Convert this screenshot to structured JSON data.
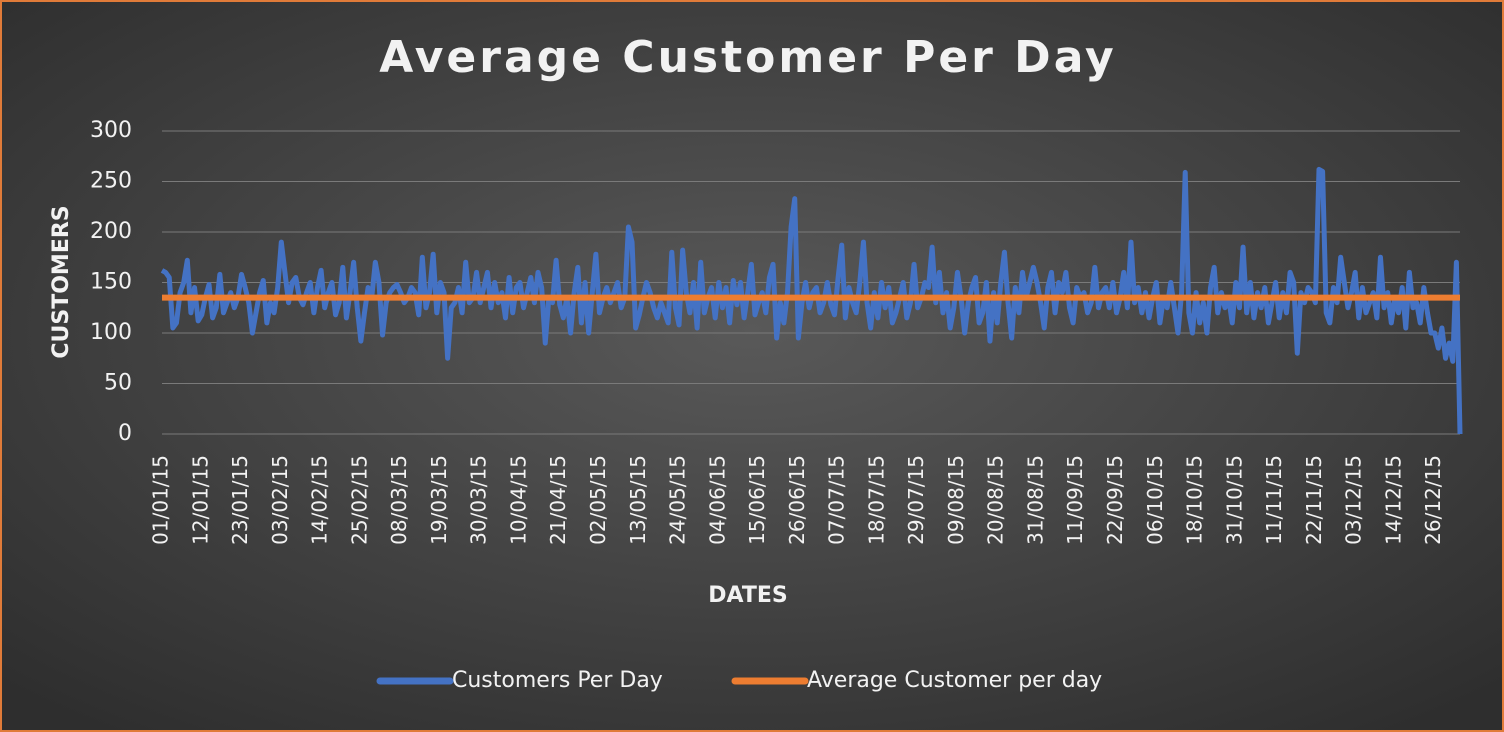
{
  "chart_data": {
    "type": "line",
    "title": "Average Customer Per Day",
    "xlabel": "DATES",
    "ylabel": "CUSTOMERS",
    "categories": [
      "01/01/15",
      null,
      null,
      null,
      null,
      null,
      null,
      null,
      null,
      null,
      null,
      "12/01/15",
      null,
      null,
      null,
      null,
      null,
      null,
      null,
      null,
      null,
      null,
      "23/01/15",
      null,
      null,
      null,
      null,
      null,
      null,
      null,
      null,
      null,
      null,
      "03/02/15",
      null,
      null,
      null,
      null,
      null,
      null,
      null,
      null,
      null,
      null,
      "14/02/15",
      null,
      null,
      null,
      null,
      null,
      null,
      null,
      null,
      null,
      null,
      "25/02/15",
      null,
      null,
      null,
      null,
      null,
      null,
      null,
      null,
      null,
      null,
      "08/03/15",
      null,
      null,
      null,
      null,
      null,
      null,
      null,
      null,
      null,
      null,
      "19/03/15",
      null,
      null,
      null,
      null,
      null,
      null,
      null,
      null,
      null,
      null,
      "30/03/15",
      null,
      null,
      null,
      null,
      null,
      null,
      null,
      null,
      null,
      null,
      "10/04/15",
      null,
      null,
      null,
      null,
      null,
      null,
      null,
      null,
      null,
      null,
      "21/04/15",
      null,
      null,
      null,
      null,
      null,
      null,
      null,
      null,
      null,
      null,
      "02/05/15",
      null,
      null,
      null,
      null,
      null,
      null,
      null,
      null,
      null,
      null,
      "13/05/15",
      null,
      null,
      null,
      null,
      null,
      null,
      null,
      null,
      null,
      null,
      "24/05/15",
      null,
      null,
      null,
      null,
      null,
      null,
      null,
      null,
      null,
      null,
      "04/06/15",
      null,
      null,
      null,
      null,
      null,
      null,
      null,
      null,
      null,
      null,
      "15/06/15",
      null,
      null,
      null,
      null,
      null,
      null,
      null,
      null,
      null,
      null,
      "26/06/15",
      null,
      null,
      null,
      null,
      null,
      null,
      null,
      null,
      null,
      null,
      "07/07/15",
      null,
      null,
      null,
      null,
      null,
      null,
      null,
      null,
      null,
      null,
      "18/07/15",
      null,
      null,
      null,
      null,
      null,
      null,
      null,
      null,
      null,
      null,
      "29/07/15",
      null,
      null,
      null,
      null,
      null,
      null,
      null,
      null,
      null,
      null,
      "09/08/15",
      null,
      null,
      null,
      null,
      null,
      null,
      null,
      null,
      null,
      null,
      "20/08/15",
      null,
      null,
      null,
      null,
      null,
      null,
      null,
      null,
      null,
      null,
      "31/08/15",
      null,
      null,
      null,
      null,
      null,
      null,
      null,
      null,
      null,
      null,
      "11/09/15",
      null,
      null,
      null,
      null,
      null,
      null,
      null,
      null,
      null,
      null,
      "22/09/15",
      null,
      null,
      null,
      null,
      null,
      null,
      null,
      null,
      null,
      null,
      "06/10/15",
      null,
      null,
      null,
      null,
      null,
      null,
      null,
      null,
      null,
      null,
      "18/10/15",
      null,
      null,
      null,
      null,
      null,
      null,
      null,
      null,
      null,
      null,
      "31/10/15",
      null,
      null,
      null,
      null,
      null,
      null,
      null,
      null,
      null,
      null,
      "11/11/15",
      null,
      null,
      null,
      null,
      null,
      null,
      null,
      null,
      null,
      null,
      "22/11/15",
      null,
      null,
      null,
      null,
      null,
      null,
      null,
      null,
      null,
      null,
      "03/12/15",
      null,
      null,
      null,
      null,
      null,
      null,
      null,
      null,
      null,
      null,
      "14/12/15",
      null,
      null,
      null,
      null,
      null,
      null,
      null,
      null,
      null,
      null,
      "26/12/15",
      null,
      null,
      null,
      null,
      null,
      null,
      null
    ],
    "series": [
      {
        "name": "Customers Per Day",
        "color": "#4472c4",
        "values": [
          162,
          160,
          155,
          105,
          110,
          140,
          150,
          172,
          120,
          145,
          112,
          118,
          135,
          148,
          115,
          125,
          158,
          120,
          130,
          140,
          125,
          135,
          158,
          145,
          130,
          100,
          120,
          140,
          152,
          110,
          130,
          120,
          145,
          190,
          160,
          130,
          150,
          155,
          135,
          128,
          140,
          150,
          120,
          145,
          162,
          125,
          140,
          150,
          118,
          130,
          165,
          115,
          140,
          170,
          125,
          92,
          120,
          145,
          135,
          170,
          150,
          98,
          130,
          140,
          145,
          148,
          140,
          130,
          135,
          145,
          140,
          118,
          175,
          125,
          140,
          178,
          120,
          150,
          140,
          75,
          125,
          130,
          145,
          120,
          170,
          130,
          135,
          160,
          130,
          145,
          160,
          125,
          150,
          130,
          140,
          115,
          155,
          120,
          145,
          150,
          125,
          140,
          155,
          130,
          160,
          145,
          90,
          135,
          130,
          172,
          128,
          115,
          135,
          100,
          140,
          165,
          110,
          150,
          100,
          140,
          178,
          120,
          135,
          145,
          130,
          140,
          150,
          125,
          135,
          205,
          190,
          105,
          118,
          135,
          150,
          140,
          125,
          115,
          130,
          120,
          110,
          180,
          125,
          108,
          182,
          140,
          120,
          150,
          105,
          170,
          120,
          135,
          145,
          115,
          150,
          125,
          145,
          110,
          152,
          128,
          150,
          115,
          140,
          168,
          118,
          130,
          140,
          120,
          155,
          168,
          95,
          130,
          110,
          140,
          205,
          233,
          95,
          130,
          150,
          125,
          140,
          145,
          120,
          130,
          150,
          128,
          118,
          155,
          187,
          115,
          145,
          130,
          120,
          150,
          190,
          130,
          105,
          140,
          115,
          150,
          125,
          145,
          110,
          120,
          135,
          150,
          115,
          130,
          168,
          125,
          135,
          150,
          145,
          185,
          130,
          160,
          120,
          140,
          105,
          125,
          160,
          135,
          100,
          130,
          145,
          155,
          110,
          120,
          150,
          92,
          140,
          110,
          150,
          180,
          130,
          95,
          145,
          120,
          160,
          135,
          150,
          165,
          150,
          130,
          105,
          145,
          160,
          120,
          150,
          140,
          160,
          125,
          110,
          145,
          135,
          140,
          120,
          130,
          165,
          125,
          140,
          145,
          125,
          150,
          120,
          135,
          160,
          125,
          190,
          130,
          145,
          120,
          140,
          115,
          135,
          150,
          110,
          135,
          125,
          150,
          125,
          100,
          140,
          259,
          120,
          100,
          140,
          110,
          130,
          100,
          145,
          165,
          120,
          140,
          125,
          135,
          110,
          150,
          125,
          185,
          120,
          150,
          115,
          140,
          125,
          145,
          110,
          130,
          150,
          115,
          140,
          120,
          160,
          150,
          80,
          140,
          130,
          145,
          140,
          130,
          262,
          260,
          120,
          110,
          145,
          130,
          175,
          150,
          125,
          140,
          160,
          115,
          145,
          120,
          130,
          140,
          115,
          175,
          125,
          140,
          110,
          135,
          120,
          145,
          105,
          160,
          125,
          130,
          110,
          145,
          120,
          100,
          100,
          85,
          105,
          75,
          90,
          72,
          170,
          0
        ]
      },
      {
        "name": "Average Customer per day",
        "color": "#ed7d31",
        "values": [
          135,
          135,
          135,
          135,
          135,
          135,
          135,
          135,
          135,
          135,
          135,
          135,
          135,
          135,
          135,
          135,
          135,
          135,
          135,
          135,
          135,
          135,
          135,
          135,
          135,
          135,
          135,
          135,
          135,
          135,
          135,
          135,
          135,
          135,
          135,
          135,
          135,
          135,
          135,
          135,
          135,
          135,
          135,
          135,
          135,
          135,
          135,
          135,
          135,
          135,
          135,
          135,
          135,
          135,
          135,
          135,
          135,
          135,
          135,
          135,
          135,
          135,
          135,
          135,
          135,
          135,
          135,
          135,
          135,
          135,
          135,
          135,
          135,
          135,
          135,
          135,
          135,
          135,
          135,
          135,
          135,
          135,
          135,
          135,
          135,
          135,
          135,
          135,
          135,
          135,
          135,
          135,
          135,
          135,
          135,
          135,
          135,
          135,
          135,
          135,
          135,
          135,
          135,
          135,
          135,
          135,
          135,
          135,
          135,
          135,
          135,
          135,
          135,
          135,
          135,
          135,
          135,
          135,
          135,
          135,
          135,
          135,
          135,
          135,
          135,
          135,
          135,
          135,
          135,
          135,
          135,
          135,
          135,
          135,
          135,
          135,
          135,
          135,
          135,
          135,
          135,
          135,
          135,
          135,
          135,
          135,
          135,
          135,
          135,
          135,
          135,
          135,
          135,
          135,
          135,
          135,
          135,
          135,
          135,
          135,
          135,
          135,
          135,
          135,
          135,
          135,
          135,
          135,
          135,
          135,
          135,
          135,
          135,
          135,
          135,
          135,
          135,
          135,
          135,
          135,
          135,
          135,
          135,
          135,
          135,
          135,
          135,
          135,
          135,
          135,
          135,
          135,
          135,
          135,
          135,
          135,
          135,
          135,
          135,
          135,
          135,
          135,
          135,
          135,
          135,
          135,
          135,
          135,
          135,
          135,
          135,
          135,
          135,
          135,
          135,
          135,
          135,
          135,
          135,
          135,
          135,
          135,
          135,
          135,
          135,
          135,
          135,
          135,
          135,
          135,
          135,
          135,
          135,
          135,
          135,
          135,
          135,
          135,
          135,
          135,
          135,
          135,
          135,
          135,
          135,
          135,
          135,
          135,
          135,
          135,
          135,
          135,
          135,
          135,
          135,
          135,
          135,
          135,
          135,
          135,
          135,
          135,
          135,
          135,
          135,
          135,
          135,
          135,
          135,
          135,
          135,
          135,
          135,
          135,
          135,
          135,
          135,
          135,
          135,
          135,
          135,
          135,
          135,
          135,
          135,
          135,
          135,
          135,
          135,
          135,
          135,
          135,
          135,
          135,
          135,
          135,
          135,
          135,
          135,
          135,
          135,
          135,
          135,
          135,
          135,
          135,
          135,
          135,
          135,
          135,
          135,
          135,
          135,
          135,
          135,
          135,
          135,
          135,
          135,
          135,
          135,
          135,
          135,
          135,
          135,
          135,
          135,
          135,
          135,
          135,
          135,
          135,
          135,
          135,
          135,
          135,
          135,
          135,
          135,
          135,
          135,
          135,
          135,
          135,
          135,
          135,
          135,
          135,
          135,
          135,
          135,
          135,
          135,
          135,
          135,
          135,
          135,
          135,
          135,
          135
        ]
      }
    ],
    "ylim": [
      0,
      300
    ],
    "yticks": [
      0,
      50,
      100,
      150,
      200,
      250,
      300
    ],
    "grid": true,
    "legend": "bottom"
  }
}
